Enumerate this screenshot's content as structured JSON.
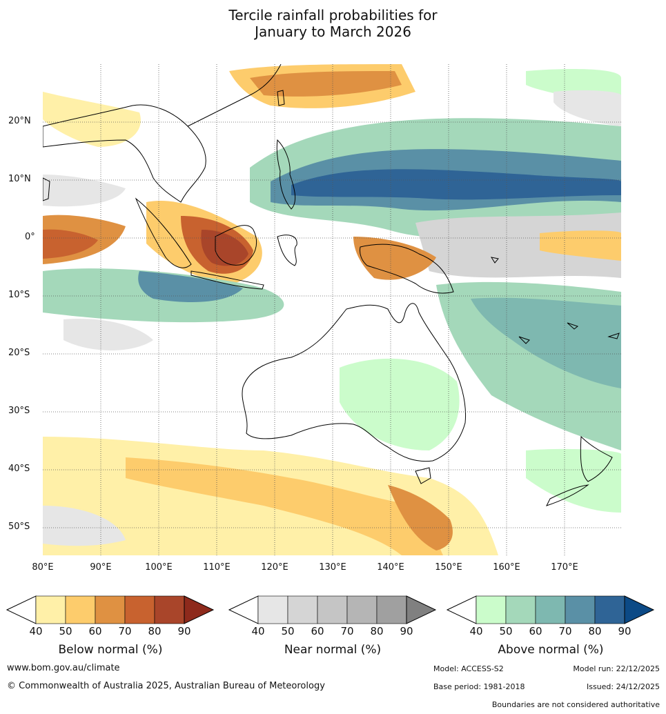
{
  "title": {
    "line1": "Tercile rainfall probabilities for",
    "line2": "January to March 2026"
  },
  "map": {
    "lat_labels": [
      "20°N",
      "10°N",
      "0°",
      "10°S",
      "20°S",
      "30°S",
      "40°S",
      "50°S"
    ],
    "lon_labels": [
      "80°E",
      "90°E",
      "100°E",
      "110°E",
      "120°E",
      "130°E",
      "140°E",
      "150°E",
      "160°E",
      "170°E"
    ],
    "region_lon_range": [
      80,
      180
    ],
    "region_lat_range": [
      -55,
      30
    ]
  },
  "legends": {
    "below": {
      "title": "Below normal (%)",
      "ticks": [
        "40",
        "50",
        "60",
        "70",
        "80",
        "90"
      ],
      "colors": [
        "#fff0a8",
        "#fdcc6c",
        "#df9142",
        "#c8622f",
        "#a9452a",
        "#8e2a1c"
      ]
    },
    "near": {
      "title": "Near normal (%)",
      "ticks": [
        "40",
        "50",
        "60",
        "70",
        "80",
        "90"
      ],
      "colors": [
        "#e6e6e6",
        "#d5d5d5",
        "#c5c5c5",
        "#b5b5b5",
        "#a0a0a0",
        "#808080"
      ]
    },
    "above": {
      "title": "Above normal (%)",
      "ticks": [
        "40",
        "50",
        "60",
        "70",
        "80",
        "90"
      ],
      "colors": [
        "#cbfccb",
        "#a4d8ba",
        "#7eb8b0",
        "#5a90a6",
        "#2f6496",
        "#0c4a86"
      ]
    }
  },
  "footer": {
    "website": "www.bom.gov.au/climate",
    "copyright": "© Commonwealth of Australia 2025, Australian Bureau of Meteorology",
    "model": "Model: ACCESS-S2",
    "model_run": "Model run: 22/12/2025",
    "base_period": "Base period: 1981-2018",
    "issued": "Issued: 24/12/2025",
    "disclaimer": "Boundaries are not considered authoritative"
  }
}
